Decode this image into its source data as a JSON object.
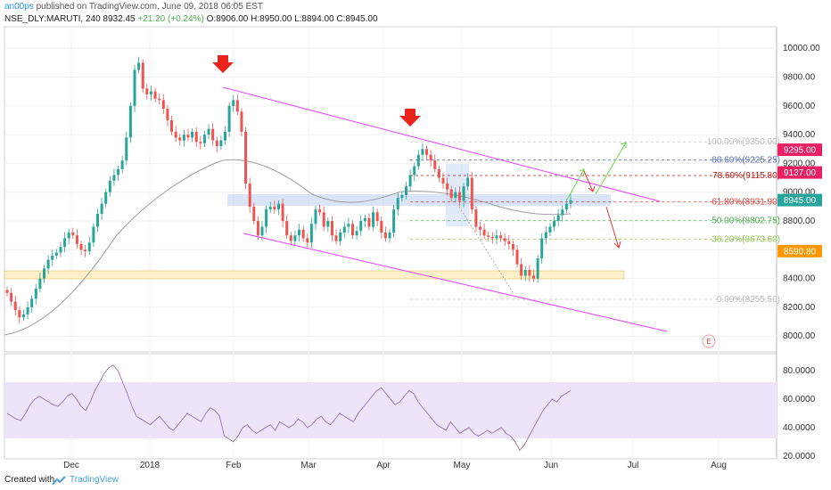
{
  "header": {
    "author": "an00ps",
    "published": "published on TradingView.com, June 09, 2018 06:05 EST",
    "symbol": "NSE_DLY:MARUTI, 240",
    "last": "8932.45",
    "change": "+21.20 (+0.24%)",
    "open": "O:8906.00",
    "high": "H:8950.00",
    "low": "L:8894.00",
    "close": "C:8945.00"
  },
  "footer": {
    "created_with": "Created with",
    "brand": "TradingView"
  },
  "colors": {
    "up": "#26a69a",
    "down": "#ef5350",
    "channel": "#e040fb",
    "fib": "#e91e63",
    "rsi_band": "#e1d5f5",
    "support": "#fdf0c8"
  },
  "chart_data": [
    {
      "type": "candlestick",
      "title": "",
      "price_axis": {
        "ylim": [
          7890,
          10150
        ],
        "ticks": [
          "10000.00",
          "9800.00",
          "9600.00",
          "9400.00",
          "9200.00",
          "9000.00",
          "8800.00",
          "8600.00",
          "8400.00",
          "8200.00",
          "8000.00"
        ]
      },
      "x_axis": {
        "ticks": [
          "Dec",
          "2018",
          "Feb",
          "Mar",
          "Apr",
          "May",
          "Jun",
          "Jul",
          "Aug"
        ]
      },
      "price_tags": [
        {
          "label": "9295.00",
          "value": 9295,
          "color": "#e91e63"
        },
        {
          "label": "9137.00",
          "value": 9137,
          "color": "#e91e63"
        },
        {
          "label": "8945.00",
          "value": 8945,
          "color": "#26a69a"
        },
        {
          "label": "8590.80",
          "value": 8590.8,
          "color": "#ff9800"
        }
      ],
      "fibonacci": [
        {
          "label": "100.00%(9350.00)",
          "value": 9350,
          "color": "#bdbdbd"
        },
        {
          "label": "88.60%(9225.25)",
          "value": 9225.25,
          "color": "#5c6bc0"
        },
        {
          "label": "78.60%(9115.80)",
          "value": 9115.8,
          "color": "#b71c1c"
        },
        {
          "label": "61.80%(8931.90)",
          "value": 8931.9,
          "color": "#e53935"
        },
        {
          "label": "50.00%(8802.75)",
          "value": 8802.75,
          "color": "#4caf50"
        },
        {
          "label": "38.20%(8673.60)",
          "value": 8673.6,
          "color": "#8bc34a"
        },
        {
          "label": "0.00%(8255.50)",
          "value": 8255.5,
          "color": "#bdbdbd"
        }
      ],
      "earnings_marker": "E",
      "series_close": [
        8300,
        8240,
        8180,
        8130,
        8150,
        8200,
        8260,
        8330,
        8400,
        8470,
        8530,
        8560,
        8580,
        8620,
        8680,
        8720,
        8700,
        8640,
        8600,
        8590,
        8650,
        8760,
        8850,
        8920,
        9000,
        9080,
        9120,
        9160,
        9220,
        9380,
        9600,
        9850,
        9900,
        9720,
        9680,
        9700,
        9650,
        9640,
        9580,
        9500,
        9420,
        9380,
        9360,
        9400,
        9380,
        9420,
        9350,
        9340,
        9400,
        9440,
        9360,
        9320,
        9360,
        9420,
        9600,
        9640,
        9560,
        9420,
        9060,
        8900,
        8800,
        8700,
        8760,
        8880,
        8900,
        8880,
        8920,
        8800,
        8700,
        8660,
        8700,
        8740,
        8680,
        8650,
        8780,
        8880,
        8860,
        8760,
        8800,
        8700,
        8660,
        8720,
        8760,
        8780,
        8700,
        8730,
        8800,
        8820,
        8760,
        8860,
        8800,
        8720,
        8680,
        8720,
        8880,
        8960,
        8980,
        9040,
        9120,
        9180,
        9260,
        9300,
        9260,
        9220,
        9160,
        9100,
        9060,
        9020,
        8960,
        9000,
        8940,
        9040,
        9100,
        8880,
        8760,
        8740,
        8700,
        8690,
        8680,
        8700,
        8680,
        8660,
        8640,
        8600,
        8500,
        8420,
        8460,
        8420,
        8400,
        8540,
        8680,
        8720,
        8760,
        8800,
        8840,
        8880,
        8920,
        8945
      ]
    },
    {
      "type": "line",
      "title": "",
      "y_axis": {
        "ylim": [
          18,
          92
        ],
        "ticks": [
          "80.0000",
          "60.0000",
          "40.0000",
          "20.0000"
        ],
        "band": [
          30,
          70
        ]
      },
      "series_rsi": [
        50,
        48,
        46,
        45,
        50,
        56,
        60,
        62,
        60,
        58,
        56,
        55,
        58,
        62,
        64,
        60,
        55,
        52,
        58,
        66,
        72,
        78,
        82,
        84,
        80,
        72,
        64,
        55,
        48,
        46,
        44,
        42,
        45,
        48,
        44,
        40,
        38,
        42,
        46,
        50,
        48,
        46,
        44,
        50,
        54,
        52,
        48,
        34,
        32,
        30,
        34,
        40,
        42,
        38,
        36,
        38,
        40,
        42,
        38,
        44,
        42,
        40,
        42,
        46,
        44,
        40,
        42,
        46,
        48,
        44,
        42,
        46,
        50,
        48,
        46,
        44,
        50,
        54,
        58,
        62,
        66,
        68,
        64,
        60,
        56,
        58,
        62,
        66,
        64,
        58,
        54,
        50,
        46,
        42,
        40,
        38,
        44,
        40,
        36,
        38,
        40,
        36,
        34,
        36,
        38,
        36,
        38,
        40,
        36,
        34,
        30,
        24,
        28,
        34,
        40,
        46,
        52,
        56,
        60,
        58,
        62,
        64,
        66
      ]
    }
  ]
}
